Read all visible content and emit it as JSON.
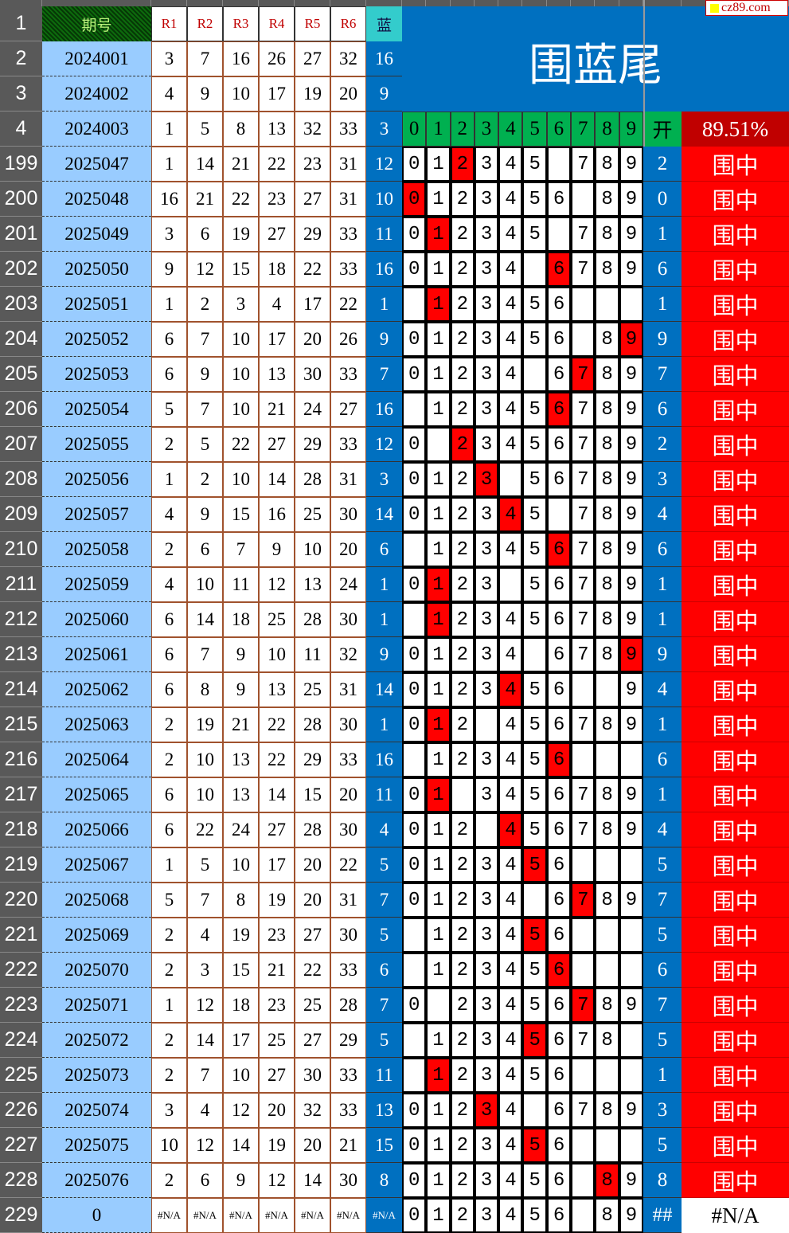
{
  "watermark": "cz89.com",
  "title": "围蓝尾",
  "header": {
    "row_label": "1",
    "issue": "期号",
    "reds": [
      "R1",
      "R2",
      "R3",
      "R4",
      "R5",
      "R6"
    ],
    "blue": "蓝",
    "digits": [
      "0",
      "1",
      "2",
      "3",
      "4",
      "5",
      "6",
      "7",
      "8",
      "9"
    ],
    "open": "开",
    "hit_rate": "89.51%"
  },
  "colors": {
    "row_header": "#595959",
    "issue_bg": "#99ccff",
    "blue_col": "#0070c0",
    "hit": "#ff0000",
    "digit_header": "#00b050",
    "rate_bg": "#c00000"
  },
  "top_rows": [
    {
      "row": "2",
      "issue": "2024001",
      "reds": [
        "3",
        "7",
        "16",
        "26",
        "27",
        "32"
      ],
      "blue": "16"
    },
    {
      "row": "3",
      "issue": "2024002",
      "reds": [
        "4",
        "9",
        "10",
        "17",
        "19",
        "20"
      ],
      "blue": "9"
    },
    {
      "row": "4",
      "issue": "2024003",
      "reds": [
        "1",
        "5",
        "8",
        "13",
        "32",
        "33"
      ],
      "blue": "3"
    }
  ],
  "rows": [
    {
      "row": "199",
      "issue": "2025047",
      "reds": [
        "1",
        "14",
        "21",
        "22",
        "23",
        "31"
      ],
      "blue": "12",
      "digits": "012345 789",
      "open": "2",
      "result": "围中"
    },
    {
      "row": "200",
      "issue": "2025048",
      "reds": [
        "16",
        "21",
        "22",
        "23",
        "27",
        "31"
      ],
      "blue": "10",
      "digits": "0123456 89",
      "open": "0",
      "result": "围中"
    },
    {
      "row": "201",
      "issue": "2025049",
      "reds": [
        "3",
        "6",
        "19",
        "27",
        "29",
        "33"
      ],
      "blue": "11",
      "digits": "012345 789",
      "open": "1",
      "result": "围中"
    },
    {
      "row": "202",
      "issue": "2025050",
      "reds": [
        "9",
        "12",
        "15",
        "18",
        "22",
        "33"
      ],
      "blue": "16",
      "digits": "01234 6789",
      "open": "6",
      "result": "围中"
    },
    {
      "row": "203",
      "issue": "2025051",
      "reds": [
        "1",
        "2",
        "3",
        "4",
        "17",
        "22"
      ],
      "blue": "1",
      "digits": " 123456   ",
      "open": "1",
      "result": "围中"
    },
    {
      "row": "204",
      "issue": "2025052",
      "reds": [
        "6",
        "7",
        "10",
        "17",
        "20",
        "26"
      ],
      "blue": "9",
      "digits": "0123456 89",
      "open": "9",
      "result": "围中"
    },
    {
      "row": "205",
      "issue": "2025053",
      "reds": [
        "6",
        "9",
        "10",
        "13",
        "30",
        "33"
      ],
      "blue": "7",
      "digits": "01234 6789",
      "open": "7",
      "result": "围中"
    },
    {
      "row": "206",
      "issue": "2025054",
      "reds": [
        "5",
        "7",
        "10",
        "21",
        "24",
        "27"
      ],
      "blue": "16",
      "digits": " 123456789",
      "open": "6",
      "result": "围中"
    },
    {
      "row": "207",
      "issue": "2025055",
      "reds": [
        "2",
        "5",
        "22",
        "27",
        "29",
        "33"
      ],
      "blue": "12",
      "digits": "0 23456789",
      "open": "2",
      "result": "围中"
    },
    {
      "row": "208",
      "issue": "2025056",
      "reds": [
        "1",
        "2",
        "10",
        "14",
        "28",
        "31"
      ],
      "blue": "3",
      "digits": "0123 56789",
      "open": "3",
      "result": "围中"
    },
    {
      "row": "209",
      "issue": "2025057",
      "reds": [
        "4",
        "9",
        "15",
        "16",
        "25",
        "30"
      ],
      "blue": "14",
      "digits": "012345 789",
      "open": "4",
      "result": "围中"
    },
    {
      "row": "210",
      "issue": "2025058",
      "reds": [
        "2",
        "6",
        "7",
        "9",
        "10",
        "20"
      ],
      "blue": "6",
      "digits": " 123456789",
      "open": "6",
      "result": "围中"
    },
    {
      "row": "211",
      "issue": "2025059",
      "reds": [
        "4",
        "10",
        "11",
        "12",
        "13",
        "24"
      ],
      "blue": "1",
      "digits": "0123 56789",
      "open": "1",
      "result": "围中"
    },
    {
      "row": "212",
      "issue": "2025060",
      "reds": [
        "6",
        "14",
        "18",
        "25",
        "28",
        "30"
      ],
      "blue": "1",
      "digits": " 123456789",
      "open": "1",
      "result": "围中"
    },
    {
      "row": "213",
      "issue": "2025061",
      "reds": [
        "6",
        "7",
        "9",
        "10",
        "11",
        "32"
      ],
      "blue": "9",
      "digits": "01234 6789",
      "open": "9",
      "result": "围中"
    },
    {
      "row": "214",
      "issue": "2025062",
      "reds": [
        "6",
        "8",
        "9",
        "13",
        "25",
        "31"
      ],
      "blue": "14",
      "digits": "0123456  9",
      "open": "4",
      "result": "围中"
    },
    {
      "row": "215",
      "issue": "2025063",
      "reds": [
        "2",
        "19",
        "21",
        "22",
        "28",
        "30"
      ],
      "blue": "1",
      "digits": "012 456789",
      "open": "1",
      "result": "围中"
    },
    {
      "row": "216",
      "issue": "2025064",
      "reds": [
        "2",
        "10",
        "13",
        "22",
        "29",
        "33"
      ],
      "blue": "16",
      "digits": " 123456   ",
      "open": "6",
      "result": "围中"
    },
    {
      "row": "217",
      "issue": "2025065",
      "reds": [
        "6",
        "10",
        "13",
        "14",
        "15",
        "20"
      ],
      "blue": "11",
      "digits": "01 3456789",
      "open": "1",
      "result": "围中"
    },
    {
      "row": "218",
      "issue": "2025066",
      "reds": [
        "6",
        "22",
        "24",
        "27",
        "28",
        "30"
      ],
      "blue": "4",
      "digits": "012 456789",
      "open": "4",
      "result": "围中"
    },
    {
      "row": "219",
      "issue": "2025067",
      "reds": [
        "1",
        "5",
        "10",
        "17",
        "20",
        "22"
      ],
      "blue": "5",
      "digits": "0123456   ",
      "open": "5",
      "result": "围中"
    },
    {
      "row": "220",
      "issue": "2025068",
      "reds": [
        "5",
        "7",
        "8",
        "19",
        "20",
        "31"
      ],
      "blue": "7",
      "digits": "01234 6789",
      "open": "7",
      "result": "围中"
    },
    {
      "row": "221",
      "issue": "2025069",
      "reds": [
        "2",
        "4",
        "19",
        "23",
        "27",
        "30"
      ],
      "blue": "5",
      "digits": " 123456   ",
      "open": "5",
      "result": "围中"
    },
    {
      "row": "222",
      "issue": "2025070",
      "reds": [
        "2",
        "3",
        "15",
        "21",
        "22",
        "33"
      ],
      "blue": "6",
      "digits": " 123456   ",
      "open": "6",
      "result": "围中"
    },
    {
      "row": "223",
      "issue": "2025071",
      "reds": [
        "1",
        "12",
        "18",
        "23",
        "25",
        "28"
      ],
      "blue": "7",
      "digits": "0 23456789",
      "open": "7",
      "result": "围中"
    },
    {
      "row": "224",
      "issue": "2025072",
      "reds": [
        "2",
        "14",
        "17",
        "25",
        "27",
        "29"
      ],
      "blue": "5",
      "digits": " 12345678 ",
      "open": "5",
      "result": "围中"
    },
    {
      "row": "225",
      "issue": "2025073",
      "reds": [
        "2",
        "7",
        "10",
        "27",
        "30",
        "33"
      ],
      "blue": "11",
      "digits": " 123456   ",
      "open": "1",
      "result": "围中"
    },
    {
      "row": "226",
      "issue": "2025074",
      "reds": [
        "3",
        "4",
        "12",
        "20",
        "32",
        "33"
      ],
      "blue": "13",
      "digits": "01234 6789",
      "open": "3",
      "result": "围中"
    },
    {
      "row": "227",
      "issue": "2025075",
      "reds": [
        "10",
        "12",
        "14",
        "19",
        "20",
        "21"
      ],
      "blue": "15",
      "digits": "0123456   ",
      "open": "5",
      "result": "围中"
    },
    {
      "row": "228",
      "issue": "2025076",
      "reds": [
        "2",
        "6",
        "9",
        "12",
        "14",
        "30"
      ],
      "blue": "8",
      "digits": "0123456 89",
      "open": "8",
      "result": "围中"
    },
    {
      "row": "229",
      "issue": "0",
      "reds": [
        "#N/A",
        "#N/A",
        "#N/A",
        "#N/A",
        "#N/A",
        "#N/A"
      ],
      "blue": "#N/A",
      "digits": "0123456 89",
      "open": "##",
      "result": "#N/A"
    }
  ]
}
